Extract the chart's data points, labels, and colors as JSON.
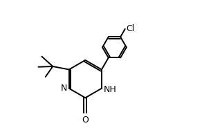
{
  "bg_color": "#ffffff",
  "line_color": "#000000",
  "line_width": 1.4,
  "fig_width": 2.92,
  "fig_height": 1.98,
  "dpi": 100,
  "xlim": [
    -1.8,
    4.2
  ],
  "ylim": [
    -2.0,
    3.2
  ]
}
